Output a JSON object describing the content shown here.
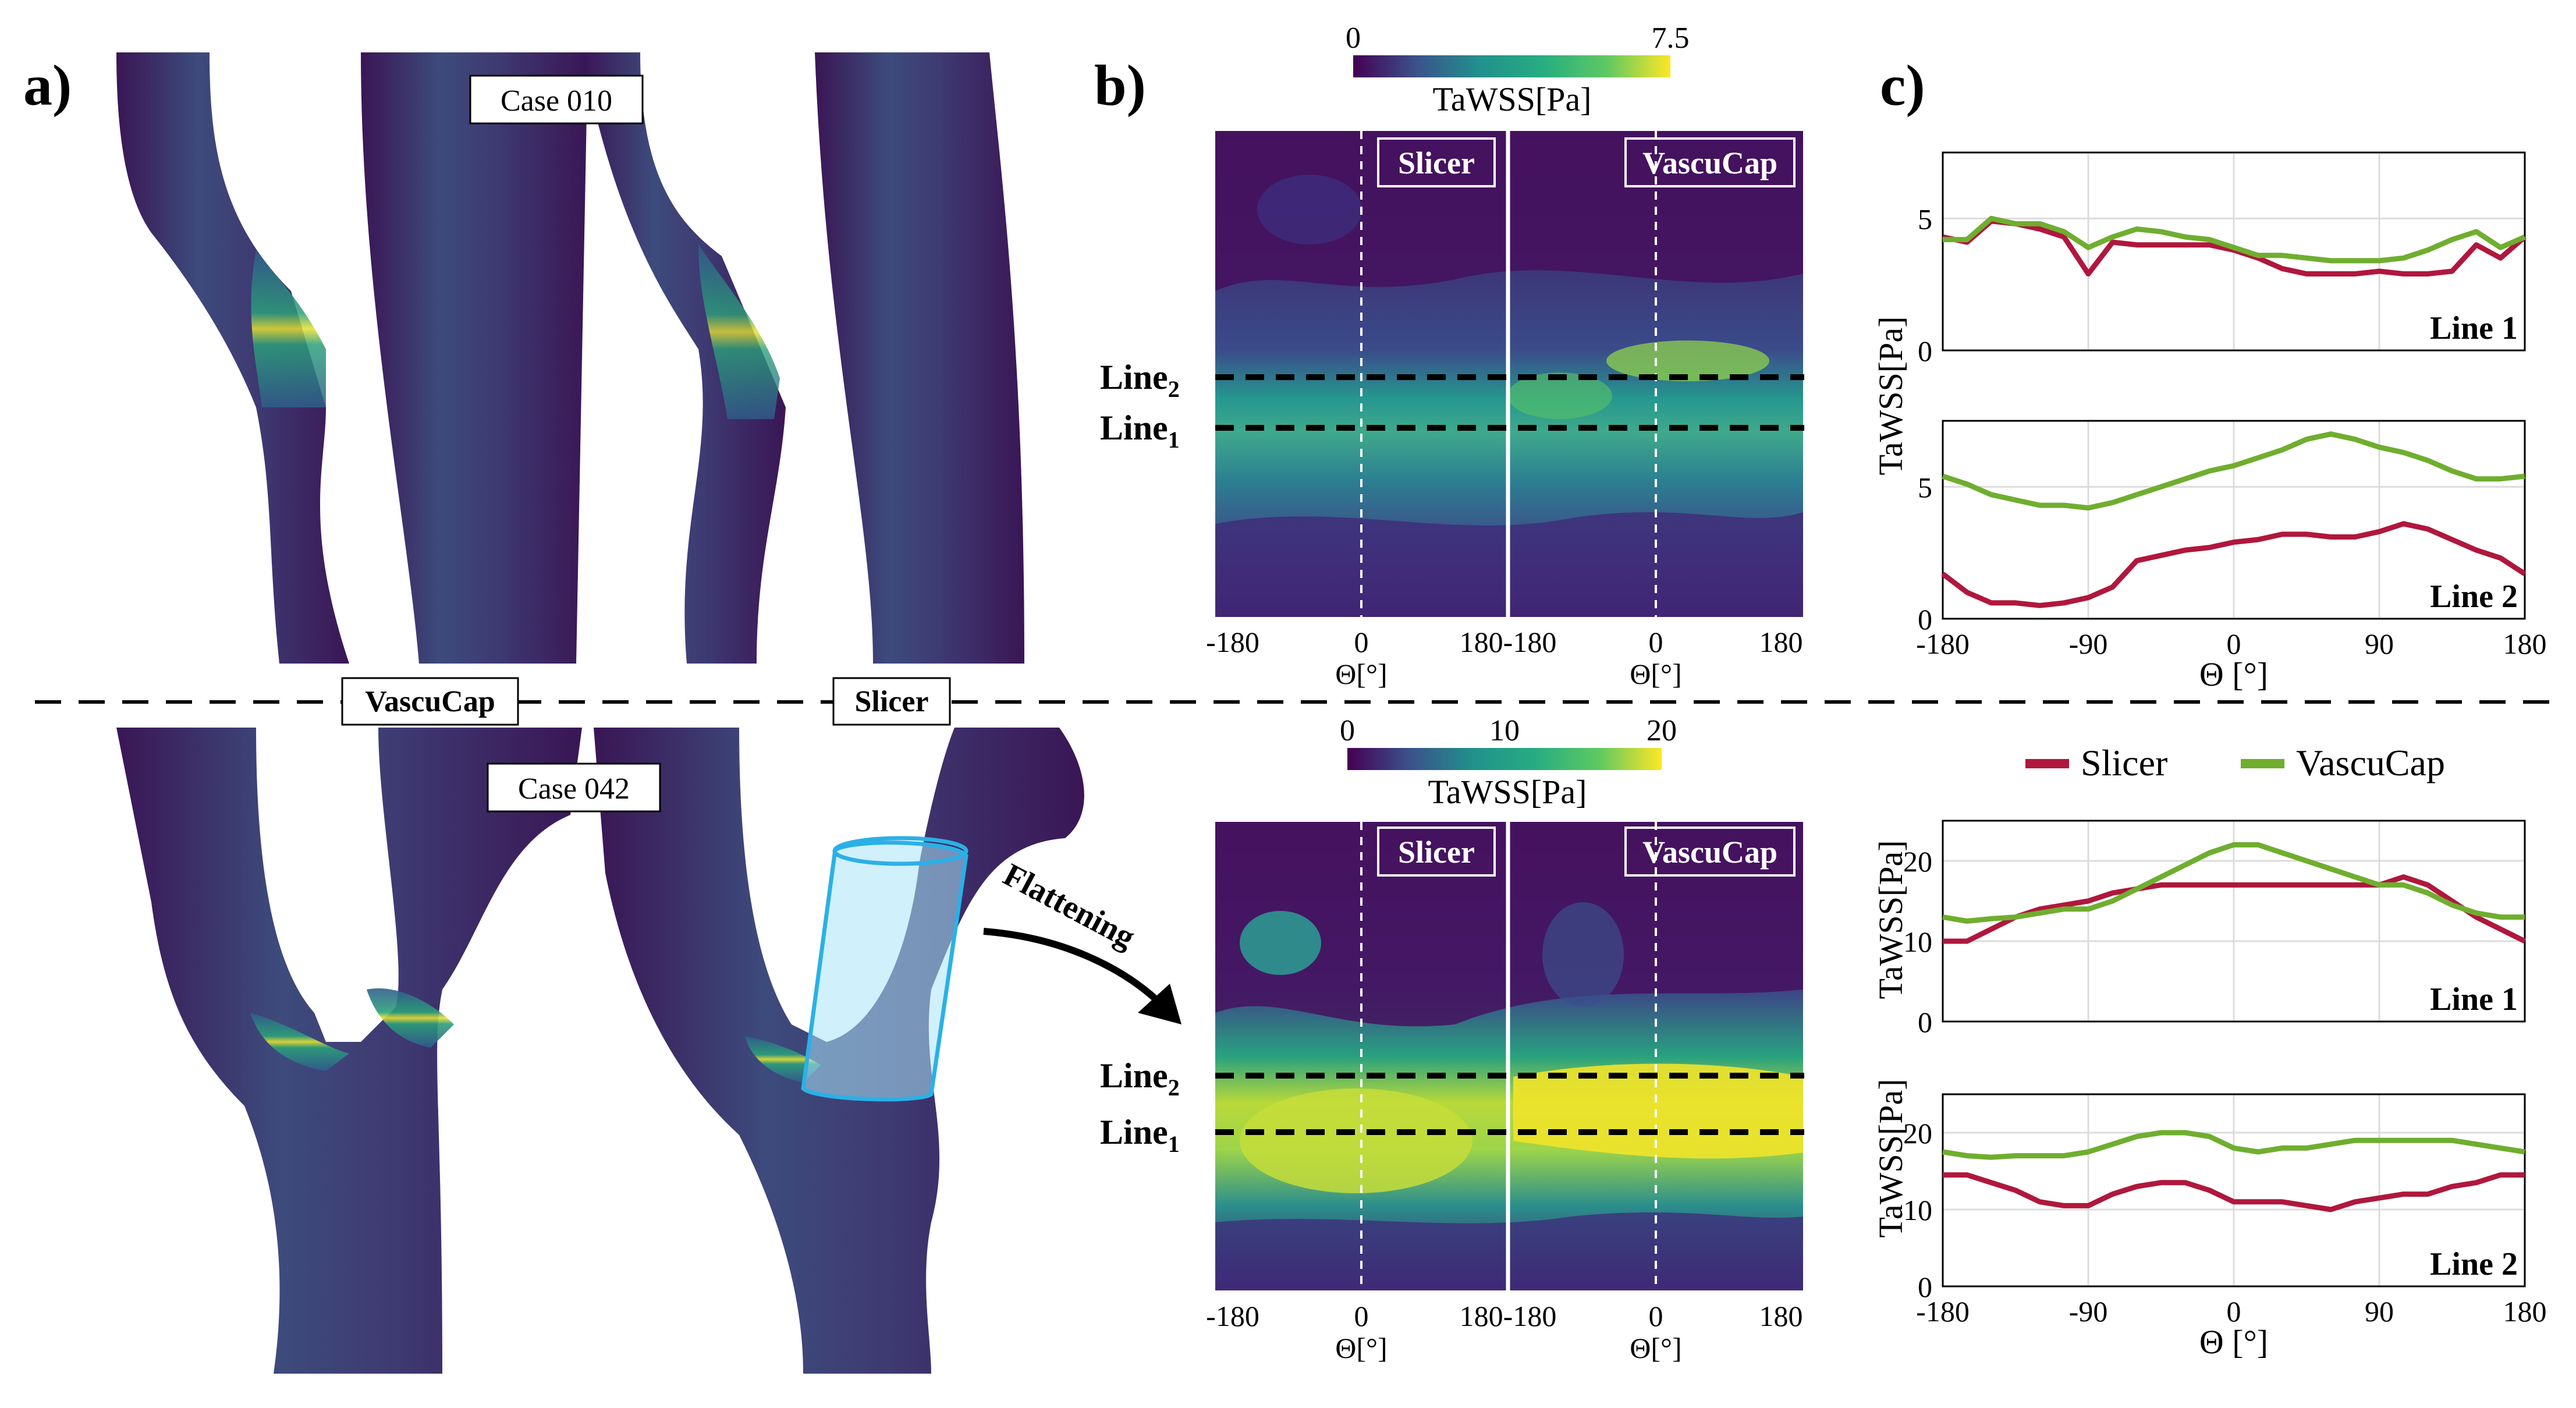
{
  "panels": {
    "a_label": "a)",
    "b_label": "b)",
    "c_label": "c)"
  },
  "case_top": "Case 010",
  "case_bottom": "Case 042",
  "method_labels": {
    "vascucap": "VascuCap",
    "slicer": "Slicer"
  },
  "flattening": "Flattening",
  "colorbar_top": {
    "label": "TaWSS[Pa]",
    "min": "0",
    "max": "7.5"
  },
  "colorbar_bottom": {
    "label": "TaWSS[Pa]",
    "ticks": [
      "0",
      "10",
      "20"
    ]
  },
  "map_tag_left": "Slicer",
  "map_tag_right": "VascuCap",
  "line_label": "Line",
  "line2_sub": "2",
  "line1_sub": "1",
  "map_xticks": [
    "-180",
    "0",
    "180"
  ],
  "map_xticks_mid": "180-180",
  "map_xlabel": "Θ[°]",
  "colors": {
    "slicer": "#b0173d",
    "vascucap": "#6fae2f"
  },
  "legend": {
    "slicer": "Slicer",
    "vascucap": "VascuCap"
  },
  "chart_data": [
    {
      "type": "line",
      "ylabel": "TaWSS[Pa]",
      "xlabel": "",
      "annotation": "Line 1",
      "x": [
        -180,
        -165,
        -150,
        -135,
        -120,
        -105,
        -90,
        -75,
        -60,
        -45,
        -30,
        -15,
        0,
        15,
        30,
        45,
        60,
        75,
        90,
        105,
        120,
        135,
        150,
        165,
        180
      ],
      "xlim": [
        -180,
        180
      ],
      "ylim": [
        0,
        7.5
      ],
      "yticks": [
        0,
        5
      ],
      "series": [
        {
          "name": "Slicer",
          "values": [
            4.3,
            4.1,
            4.9,
            4.8,
            4.6,
            4.3,
            2.9,
            4.1,
            4.0,
            4.0,
            4.0,
            4.0,
            3.8,
            3.5,
            3.1,
            2.9,
            2.9,
            2.9,
            3.0,
            2.9,
            2.9,
            3.0,
            4.0,
            3.5,
            4.3
          ]
        },
        {
          "name": "VascuCap",
          "values": [
            4.2,
            4.2,
            5.0,
            4.8,
            4.8,
            4.5,
            3.9,
            4.3,
            4.6,
            4.5,
            4.3,
            4.2,
            3.9,
            3.6,
            3.6,
            3.5,
            3.4,
            3.4,
            3.4,
            3.5,
            3.8,
            4.2,
            4.5,
            3.9,
            4.3
          ]
        }
      ]
    },
    {
      "type": "line",
      "ylabel": "",
      "xlabel": "Θ [°]",
      "annotation": "Line 2",
      "x": [
        -180,
        -165,
        -150,
        -135,
        -120,
        -105,
        -90,
        -75,
        -60,
        -45,
        -30,
        -15,
        0,
        15,
        30,
        45,
        60,
        75,
        90,
        105,
        120,
        135,
        150,
        165,
        180
      ],
      "xlim": [
        -180,
        180
      ],
      "ylim": [
        0,
        7.5
      ],
      "yticks": [
        0,
        5
      ],
      "xticks": [
        "-180",
        "-90",
        "0",
        "90",
        "180"
      ],
      "series": [
        {
          "name": "Slicer",
          "values": [
            1.7,
            1.0,
            0.6,
            0.6,
            0.5,
            0.6,
            0.8,
            1.2,
            2.2,
            2.4,
            2.6,
            2.7,
            2.9,
            3.0,
            3.2,
            3.2,
            3.1,
            3.1,
            3.3,
            3.6,
            3.4,
            3.0,
            2.6,
            2.3,
            1.7
          ]
        },
        {
          "name": "VascuCap",
          "values": [
            5.4,
            5.1,
            4.7,
            4.5,
            4.3,
            4.3,
            4.2,
            4.4,
            4.7,
            5.0,
            5.3,
            5.6,
            5.8,
            6.1,
            6.4,
            6.8,
            7.0,
            6.8,
            6.5,
            6.3,
            6.0,
            5.6,
            5.3,
            5.3,
            5.4
          ]
        }
      ]
    },
    {
      "type": "line",
      "ylabel": "TaWSS[Pa]",
      "xlabel": "",
      "annotation": "Line 1",
      "x": [
        -180,
        -165,
        -150,
        -135,
        -120,
        -105,
        -90,
        -75,
        -60,
        -45,
        -30,
        -15,
        0,
        15,
        30,
        45,
        60,
        75,
        90,
        105,
        120,
        135,
        150,
        165,
        180
      ],
      "xlim": [
        -180,
        180
      ],
      "ylim": [
        0,
        25
      ],
      "yticks": [
        0,
        10,
        20
      ],
      "series": [
        {
          "name": "Slicer",
          "values": [
            10,
            10,
            11.5,
            13,
            14,
            14.5,
            15,
            16,
            16.5,
            17,
            17,
            17,
            17,
            17,
            17,
            17,
            17,
            17,
            17,
            18,
            17,
            15,
            13,
            11.5,
            10
          ]
        },
        {
          "name": "VascuCap",
          "values": [
            13,
            12.5,
            12.8,
            13,
            13.5,
            14,
            14,
            15,
            16.5,
            18,
            19.5,
            21,
            22,
            22,
            21,
            20,
            19,
            18,
            17,
            17,
            16,
            14.5,
            13.5,
            13,
            13
          ]
        }
      ]
    },
    {
      "type": "line",
      "ylabel": "TaWSS[Pa]",
      "xlabel": "Θ [°]",
      "annotation": "Line 2",
      "x": [
        -180,
        -165,
        -150,
        -135,
        -120,
        -105,
        -90,
        -75,
        -60,
        -45,
        -30,
        -15,
        0,
        15,
        30,
        45,
        60,
        75,
        90,
        105,
        120,
        135,
        150,
        165,
        180
      ],
      "xlim": [
        -180,
        180
      ],
      "ylim": [
        0,
        25
      ],
      "yticks": [
        0,
        10,
        20
      ],
      "xticks": [
        "-180",
        "-90",
        "0",
        "90",
        "180"
      ],
      "series": [
        {
          "name": "Slicer",
          "values": [
            14.5,
            14.5,
            13.5,
            12.5,
            11,
            10.5,
            10.5,
            12,
            13,
            13.5,
            13.5,
            12.5,
            11,
            11,
            11,
            10.5,
            10,
            11,
            11.5,
            12,
            12,
            13,
            13.5,
            14.5,
            14.5
          ]
        },
        {
          "name": "VascuCap",
          "values": [
            17.5,
            17,
            16.8,
            17,
            17,
            17,
            17.5,
            18.5,
            19.5,
            20,
            20,
            19.5,
            18,
            17.5,
            18,
            18,
            18.5,
            19,
            19,
            19,
            19,
            19,
            18.5,
            18,
            17.5
          ]
        }
      ]
    }
  ]
}
